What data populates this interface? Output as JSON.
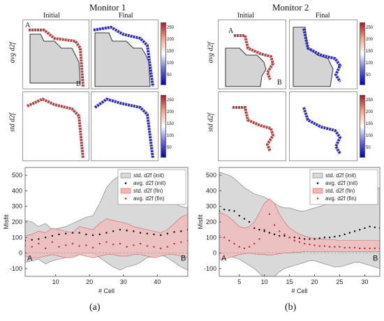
{
  "monitor1": {
    "title": "Monitor 1",
    "col_initial": "Initial",
    "col_final": "Final",
    "row_avg": "avg d2f",
    "row_std": "std d2f",
    "label_a": "A",
    "label_b": "B",
    "cbar_ticks": [
      "250",
      "200",
      "150",
      "100",
      "50"
    ]
  },
  "monitor2": {
    "title": "Monitor 2",
    "col_initial": "Initial",
    "col_final": "Final",
    "row_avg": "avg d2f",
    "row_std": "std d2f",
    "label_a": "A",
    "label_b": "B",
    "cbar_ticks": [
      "250",
      "200",
      "150",
      "100",
      "50"
    ]
  },
  "captions": {
    "a": "(a)",
    "b": "(b)"
  },
  "colors": {
    "init_band": "#d9d9d9",
    "fin_band": "#f2b8b8",
    "init_dot": "#000000",
    "fin_dot": "#cc2222",
    "cbar_high": "#b2182b",
    "cbar_low": "#0000cc"
  },
  "chart_data": [
    {
      "type": "area",
      "xlabel": "# Cell",
      "ylabel": "Misfit",
      "xlim": [
        1,
        49
      ],
      "ylim": [
        -150,
        550
      ],
      "xticks": [
        10,
        20,
        30,
        40
      ],
      "yticks": [
        -100,
        0,
        100,
        200,
        300,
        400,
        500
      ],
      "annotations": [
        "A",
        "B"
      ],
      "legend": [
        "std. d2f (init)",
        "avg. d2f (init)",
        "std. d2f (fin)",
        "avg. d2f (fin)"
      ],
      "legend_position": "top-right",
      "series": [
        {
          "name": "std. d2f (init)",
          "x": [
            1,
            3,
            5,
            7,
            9,
            11,
            13,
            15,
            17,
            19,
            21,
            23,
            25,
            27,
            29,
            31,
            33,
            35,
            37,
            39,
            41,
            43,
            45,
            47,
            49
          ],
          "upper": [
            210,
            200,
            170,
            190,
            150,
            160,
            170,
            190,
            210,
            230,
            240,
            320,
            420,
            470,
            500,
            470,
            450,
            430,
            400,
            380,
            360,
            340,
            320,
            300,
            290
          ],
          "lower": [
            -60,
            -50,
            -40,
            -70,
            -50,
            -40,
            -30,
            -20,
            -10,
            0,
            0,
            -30,
            -60,
            -90,
            -110,
            -90,
            -80,
            -60,
            -30,
            -20,
            -10,
            -30,
            -60,
            -90,
            -110
          ]
        },
        {
          "name": "avg. d2f (init)",
          "x": [
            1,
            3,
            5,
            7,
            9,
            11,
            13,
            15,
            17,
            19,
            21,
            23,
            25,
            27,
            29,
            31,
            33,
            35,
            37,
            39,
            41,
            43,
            45,
            47,
            49
          ],
          "y": [
            80,
            85,
            90,
            100,
            110,
            120,
            125,
            130,
            130,
            120,
            115,
            120,
            130,
            140,
            150,
            145,
            140,
            130,
            125,
            120,
            115,
            125,
            135,
            140,
            150
          ]
        },
        {
          "name": "std. d2f (fin)",
          "x": [
            1,
            3,
            5,
            7,
            9,
            11,
            13,
            15,
            17,
            19,
            21,
            23,
            25,
            27,
            29,
            31,
            33,
            35,
            37,
            39,
            41,
            43,
            45,
            47,
            49
          ],
          "upper": [
            110,
            120,
            140,
            130,
            160,
            150,
            140,
            130,
            170,
            160,
            150,
            190,
            220,
            210,
            200,
            190,
            170,
            160,
            150,
            140,
            130,
            150,
            190,
            230,
            250
          ],
          "lower": [
            -20,
            -30,
            -30,
            -20,
            -10,
            -20,
            -30,
            -30,
            -10,
            -20,
            -30,
            -20,
            -10,
            -10,
            -20,
            -20,
            -10,
            -10,
            -20,
            -30,
            -20,
            -10,
            -10,
            -20,
            -30
          ]
        },
        {
          "name": "avg. d2f (fin)",
          "x": [
            1,
            3,
            5,
            7,
            9,
            11,
            13,
            15,
            17,
            19,
            21,
            23,
            25,
            27,
            29,
            31,
            33,
            35,
            37,
            39,
            41,
            43,
            45,
            47,
            49
          ],
          "y": [
            50,
            40,
            60,
            30,
            70,
            40,
            50,
            60,
            45,
            50,
            35,
            60,
            70,
            55,
            60,
            40,
            50,
            60,
            45,
            40,
            30,
            40,
            60,
            70,
            80
          ]
        }
      ]
    },
    {
      "type": "area",
      "xlabel": "# Cell",
      "ylabel": "Misfit",
      "xlim": [
        1,
        33
      ],
      "ylim": [
        -150,
        550
      ],
      "xticks": [
        5,
        10,
        15,
        20,
        25,
        30
      ],
      "yticks": [
        -100,
        0,
        100,
        200,
        300,
        400,
        500
      ],
      "annotations": [
        "A",
        "B"
      ],
      "legend": [
        "std. d2f (init)",
        "avg. d2f (init)",
        "std. d2f (fin)",
        "avg. d2f (fin)"
      ],
      "legend_position": "top-right",
      "series": [
        {
          "name": "std. d2f (init)",
          "x": [
            1,
            2,
            3,
            4,
            5,
            6,
            7,
            8,
            9,
            10,
            11,
            12,
            13,
            14,
            15,
            16,
            17,
            18,
            19,
            20,
            21,
            22,
            23,
            24,
            25,
            26,
            27,
            28,
            29,
            30,
            31,
            32,
            33
          ],
          "upper": [
            520,
            510,
            500,
            480,
            450,
            420,
            400,
            380,
            370,
            360,
            340,
            320,
            300,
            290,
            290,
            280,
            270,
            270,
            280,
            290,
            300,
            310,
            320,
            330,
            340,
            350,
            360,
            370,
            380,
            390,
            400,
            410,
            420
          ],
          "lower": [
            0,
            -10,
            -20,
            -30,
            -40,
            -60,
            -80,
            -100,
            -130,
            -160,
            -170,
            -150,
            -120,
            -100,
            -90,
            -80,
            -70,
            -60,
            -50,
            -50,
            -60,
            -70,
            -80,
            -90,
            -90,
            -80,
            -70,
            -60,
            -60,
            -70,
            -80,
            -90,
            -100
          ]
        },
        {
          "name": "avg. d2f (init)",
          "x": [
            1,
            2,
            3,
            4,
            5,
            6,
            7,
            8,
            9,
            10,
            11,
            12,
            13,
            14,
            15,
            16,
            17,
            18,
            19,
            20,
            21,
            22,
            23,
            24,
            25,
            26,
            27,
            28,
            29,
            30,
            31,
            32,
            33
          ],
          "y": [
            270,
            280,
            275,
            270,
            240,
            220,
            200,
            160,
            150,
            140,
            130,
            120,
            110,
            110,
            100,
            100,
            95,
            90,
            90,
            90,
            95,
            100,
            100,
            105,
            110,
            120,
            130,
            140,
            150,
            160,
            170,
            165,
            160
          ]
        },
        {
          "name": "std. d2f (fin)",
          "x": [
            1,
            2,
            3,
            4,
            5,
            6,
            7,
            8,
            9,
            10,
            11,
            12,
            13,
            14,
            15,
            16,
            17,
            18,
            19,
            20,
            21,
            22,
            23,
            24,
            25,
            26,
            27,
            28,
            29,
            30,
            31,
            32,
            33
          ],
          "upper": [
            260,
            250,
            230,
            200,
            170,
            160,
            170,
            200,
            260,
            320,
            350,
            320,
            250,
            200,
            160,
            140,
            120,
            110,
            100,
            95,
            90,
            90,
            85,
            85,
            80,
            80,
            80,
            80,
            80,
            80,
            80,
            80,
            80
          ],
          "lower": [
            -40,
            -40,
            -30,
            -20,
            -10,
            -5,
            0,
            -5,
            -10,
            -10,
            -15,
            -10,
            -5,
            0,
            0,
            5,
            5,
            10,
            10,
            10,
            10,
            10,
            10,
            10,
            10,
            10,
            10,
            10,
            10,
            10,
            10,
            10,
            10
          ]
        },
        {
          "name": "avg. d2f (fin)",
          "x": [
            1,
            2,
            3,
            4,
            5,
            6,
            7,
            8,
            9,
            10,
            11,
            12,
            13,
            14,
            15,
            16,
            17,
            18,
            19,
            20,
            21,
            22,
            23,
            24,
            25,
            26,
            27,
            28,
            29,
            30,
            31,
            32,
            33
          ],
          "y": [
            110,
            100,
            80,
            60,
            40,
            30,
            40,
            60,
            90,
            150,
            250,
            180,
            140,
            120,
            100,
            80,
            70,
            60,
            55,
            50,
            45,
            45,
            40,
            40,
            40,
            35,
            35,
            35,
            30,
            30,
            30,
            30,
            30
          ]
        }
      ]
    }
  ]
}
